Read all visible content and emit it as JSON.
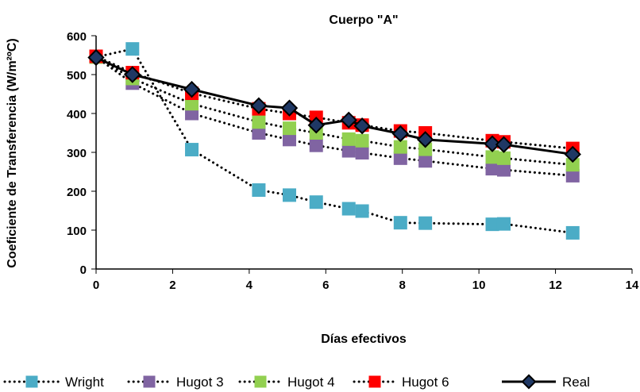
{
  "chart_data": {
    "type": "scatter",
    "title": "Cuerpo \"A\"",
    "xlabel": "Días efectivos",
    "ylabel": "Coeficiente de Transferencia (W/m²ºC)",
    "xlim": [
      0,
      14
    ],
    "ylim": [
      0,
      600
    ],
    "xticks": [
      "0",
      "2",
      "4",
      "6",
      "8",
      "10",
      "12",
      "14"
    ],
    "yticks": [
      "0",
      "100",
      "200",
      "300",
      "400",
      "500",
      "600"
    ],
    "grid": false,
    "legend_position": "bottom",
    "series": [
      {
        "name": "Wright",
        "color": "#4bacc6",
        "line": "dotted",
        "x": [
          0,
          0.95,
          2.5,
          4.25,
          5.05,
          5.75,
          6.6,
          6.95,
          7.95,
          8.6,
          10.35,
          10.65,
          12.45
        ],
        "y": [
          545,
          566,
          307,
          203,
          190,
          172,
          155,
          149,
          119,
          118,
          115,
          116,
          93
        ]
      },
      {
        "name": "Hugot 3",
        "color": "#8064a2",
        "line": "dotted",
        "x": [
          0,
          0.95,
          2.5,
          4.25,
          5.05,
          5.75,
          6.6,
          6.95,
          7.95,
          8.6,
          10.35,
          10.65,
          12.45
        ],
        "y": [
          545,
          478,
          400,
          350,
          333,
          318,
          304,
          299,
          285,
          278,
          258,
          255,
          240
        ]
      },
      {
        "name": "Hugot 4",
        "color": "#92d050",
        "line": "dotted",
        "x": [
          0,
          0.95,
          2.5,
          4.25,
          5.05,
          5.75,
          6.6,
          6.95,
          7.95,
          8.6,
          10.35,
          10.65,
          12.45
        ],
        "y": [
          545,
          490,
          425,
          378,
          362,
          350,
          334,
          330,
          314,
          308,
          288,
          285,
          268
        ]
      },
      {
        "name": "Hugot 6",
        "color": "#ff0000",
        "line": "dotted",
        "x": [
          0,
          0.95,
          2.5,
          4.25,
          5.05,
          5.75,
          6.6,
          6.95,
          7.95,
          8.6,
          10.35,
          10.65,
          12.45
        ],
        "y": [
          547,
          505,
          452,
          412,
          400,
          390,
          376,
          370,
          355,
          350,
          330,
          327,
          310
        ]
      },
      {
        "name": "Real",
        "color": "#1f3864",
        "line": "solid",
        "x": [
          0,
          0.95,
          2.5,
          4.25,
          5.05,
          5.75,
          6.6,
          6.95,
          7.95,
          8.6,
          10.35,
          10.65,
          12.45
        ],
        "y": [
          544,
          500,
          462,
          420,
          414,
          370,
          383,
          368,
          348,
          333,
          322,
          320,
          295
        ]
      }
    ]
  }
}
